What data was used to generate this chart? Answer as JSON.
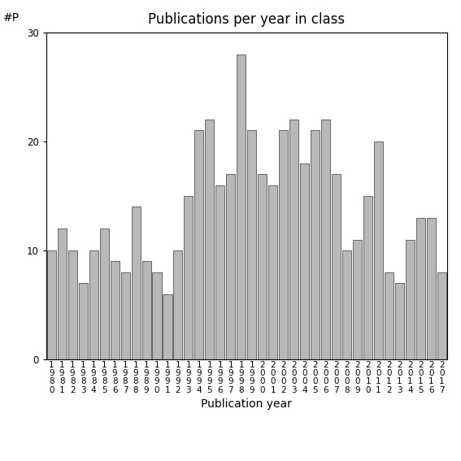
{
  "years": [
    "1980",
    "1981",
    "1982",
    "1983",
    "1984",
    "1985",
    "1986",
    "1987",
    "1988",
    "1989",
    "1990",
    "1991",
    "1992",
    "1993",
    "1994",
    "1995",
    "1996",
    "1997",
    "1998",
    "1999",
    "2000",
    "2001",
    "2002",
    "2003",
    "2004",
    "2005",
    "2006",
    "2007",
    "2008",
    "2009",
    "2010",
    "2011",
    "2012",
    "2013",
    "2014",
    "2015",
    "2016",
    "2017"
  ],
  "values": [
    10,
    12,
    10,
    7,
    10,
    12,
    9,
    8,
    14,
    9,
    8,
    6,
    10,
    15,
    21,
    22,
    16,
    17,
    28,
    21,
    17,
    16,
    21,
    22,
    18,
    21,
    22,
    17,
    10,
    11,
    15,
    20,
    8,
    7,
    11,
    13,
    13,
    8
  ],
  "title": "Publications per year in class",
  "xlabel": "Publication year",
  "ylabel": "#P",
  "ylim": [
    0,
    30
  ],
  "yticks": [
    0,
    10,
    20,
    30
  ],
  "bar_color": "#b8b8b8",
  "bar_edge_color": "#555555",
  "background_color": "#ffffff",
  "tick_label_fontsize": 7.5,
  "axis_label_fontsize": 10,
  "title_fontsize": 12
}
